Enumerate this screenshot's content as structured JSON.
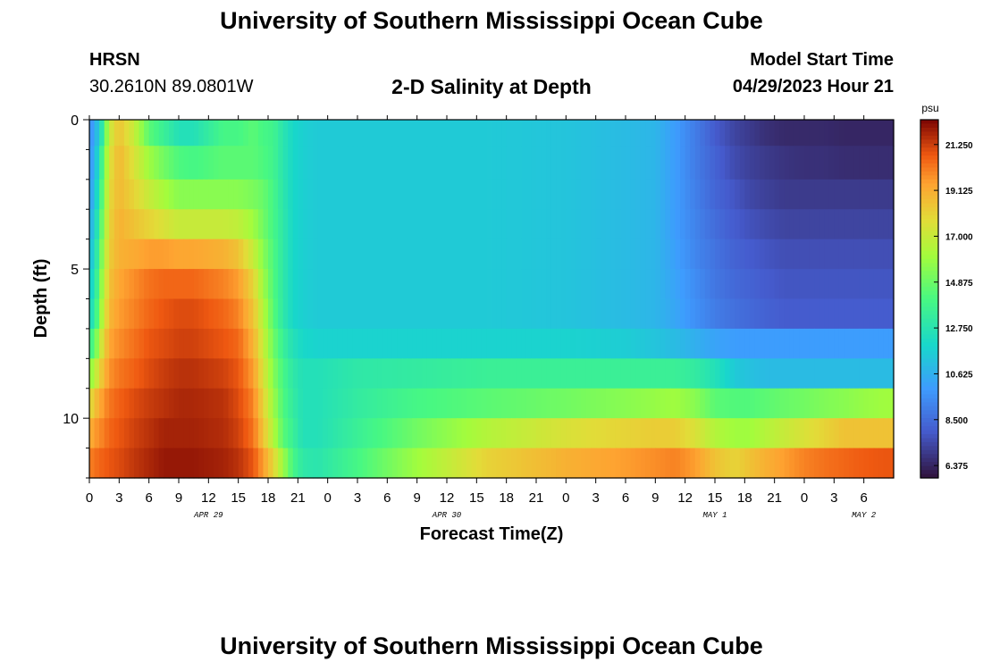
{
  "header": {
    "title": "University of Southern Mississippi Ocean Cube",
    "station_code": "HRSN",
    "station_coords": "30.2610N  89.0801W",
    "plot_title": "2-D Salinity at Depth",
    "model_start_label": "Model Start Time",
    "model_start_value": "04/29/2023 Hour 21"
  },
  "footer": {
    "title": "University of Southern Mississippi Ocean Cube"
  },
  "chart_data": {
    "type": "heatmap",
    "title": "2-D Salinity at Depth",
    "xlabel": "Forecast Time(Z)",
    "ylabel": "Depth (ft)",
    "x_range_hours": [
      0,
      81
    ],
    "x_tick_step_hours": 3,
    "x_tick_labels": [
      "0",
      "3",
      "6",
      "9",
      "12",
      "15",
      "18",
      "21",
      "0",
      "3",
      "6",
      "9",
      "12",
      "15",
      "18",
      "21",
      "0",
      "3",
      "6",
      "9",
      "12",
      "15",
      "18",
      "21",
      "0",
      "3",
      "6"
    ],
    "date_labels": [
      {
        "text": "APR 29",
        "hour": 12
      },
      {
        "text": "APR 30",
        "hour": 36
      },
      {
        "text": "MAY 1",
        "hour": 63
      },
      {
        "text": "MAY 2",
        "hour": 78
      }
    ],
    "y_range_ft": [
      0,
      12
    ],
    "y_tick_labels": [
      "0",
      "5",
      "10"
    ],
    "y_tick_values": [
      0,
      5,
      10
    ],
    "colorbar": {
      "unit": "psu",
      "min": 5.8,
      "max": 22.4,
      "tick_labels": [
        "21.250",
        "19.125",
        "17.000",
        "14.875",
        "12.750",
        "10.625",
        "8.500",
        "6.375"
      ],
      "tick_values": [
        21.25,
        19.125,
        17.0,
        14.875,
        12.75,
        10.625,
        8.5,
        6.375
      ]
    },
    "depth_levels_ft": [
      0.25,
      1.5,
      2.5,
      3.5,
      4.5,
      5.5,
      6.5,
      7.5,
      8.5,
      9.5,
      10.5,
      11.5
    ],
    "salinity_profiles_psu": {
      "time_hours": [
        0,
        0.5,
        1.3,
        2,
        3,
        4.5,
        6,
        7.5,
        9,
        10.5,
        13.5,
        15,
        16.5,
        17.5,
        18.5,
        19.5,
        20.5,
        21.5,
        23,
        27,
        33,
        40,
        48,
        54,
        57,
        59,
        61,
        63,
        65,
        66.5,
        68,
        70,
        72,
        74,
        76,
        78,
        80,
        81
      ],
      "rows": [
        [
          9.6,
          10.2,
          13.0,
          17.0,
          18.5,
          17.0,
          14.5,
          13.5,
          12.5,
          12.5,
          14.0,
          14.0,
          14.5,
          14.0,
          13.8,
          12.8,
          12.0,
          11.7,
          11.5,
          11.5,
          11.5,
          11.5,
          11.3,
          11.0,
          10.8,
          10.0,
          9.0,
          8.0,
          7.3,
          7.0,
          6.7,
          6.5,
          6.5,
          6.5,
          6.4,
          6.4,
          6.4,
          6.4
        ],
        [
          9.8,
          10.5,
          14.0,
          17.5,
          18.8,
          17.5,
          16.0,
          15.0,
          14.2,
          14.0,
          14.5,
          14.5,
          14.5,
          14.2,
          13.8,
          12.8,
          12.0,
          11.7,
          11.5,
          11.5,
          11.5,
          11.5,
          11.3,
          11.0,
          10.8,
          10.0,
          9.0,
          8.2,
          7.5,
          7.2,
          7.0,
          6.8,
          6.7,
          6.7,
          6.6,
          6.6,
          6.6,
          6.6
        ],
        [
          10.0,
          11.0,
          14.5,
          17.8,
          18.8,
          18.0,
          17.0,
          16.2,
          15.5,
          15.5,
          15.5,
          15.5,
          15.2,
          14.8,
          14.0,
          12.9,
          12.0,
          11.7,
          11.5,
          11.5,
          11.5,
          11.5,
          11.3,
          11.0,
          10.8,
          10.0,
          9.1,
          8.3,
          7.8,
          7.4,
          7.2,
          7.0,
          7.0,
          7.0,
          7.0,
          7.0,
          7.0,
          7.0
        ],
        [
          10.5,
          11.5,
          15.0,
          18.0,
          19.0,
          18.5,
          18.0,
          17.5,
          17.0,
          17.0,
          17.0,
          16.8,
          16.0,
          15.0,
          14.0,
          13.0,
          12.0,
          11.7,
          11.5,
          11.5,
          11.5,
          11.5,
          11.3,
          11.0,
          10.8,
          10.0,
          9.2,
          8.5,
          8.0,
          7.7,
          7.5,
          7.3,
          7.3,
          7.3,
          7.3,
          7.3,
          7.3,
          7.3
        ],
        [
          11.0,
          12.0,
          15.5,
          18.2,
          19.0,
          19.2,
          19.5,
          19.5,
          19.3,
          19.3,
          19.0,
          18.5,
          17.0,
          15.5,
          14.2,
          13.0,
          12.0,
          11.7,
          11.5,
          11.5,
          11.5,
          11.5,
          11.3,
          11.0,
          10.8,
          10.1,
          9.3,
          8.7,
          8.2,
          8.0,
          7.8,
          7.6,
          7.6,
          7.6,
          7.6,
          7.6,
          7.6,
          7.6
        ],
        [
          11.5,
          12.5,
          16.0,
          18.5,
          19.3,
          19.8,
          20.3,
          20.5,
          20.5,
          20.5,
          20.0,
          19.5,
          18.0,
          16.0,
          14.3,
          13.0,
          12.0,
          11.7,
          11.5,
          11.5,
          11.5,
          11.5,
          11.3,
          11.0,
          10.8,
          10.2,
          9.5,
          8.8,
          8.4,
          8.2,
          8.0,
          7.8,
          7.8,
          7.8,
          7.8,
          7.8,
          7.8,
          7.8
        ],
        [
          12.0,
          13.0,
          16.5,
          18.8,
          19.5,
          20.0,
          20.5,
          20.8,
          21.0,
          21.0,
          20.5,
          20.0,
          18.5,
          16.5,
          14.5,
          13.0,
          12.0,
          11.7,
          11.5,
          11.5,
          11.5,
          11.5,
          11.3,
          11.0,
          10.8,
          10.3,
          9.6,
          9.0,
          8.6,
          8.4,
          8.2,
          8.0,
          8.0,
          8.0,
          8.0,
          8.0,
          8.0,
          8.0
        ],
        [
          13.5,
          14.5,
          17.5,
          19.3,
          19.8,
          20.3,
          20.8,
          21.0,
          21.2,
          21.2,
          20.8,
          20.5,
          19.0,
          17.0,
          15.0,
          13.5,
          12.5,
          12.0,
          11.8,
          11.8,
          11.8,
          11.8,
          11.8,
          11.6,
          11.3,
          11.0,
          10.6,
          10.2,
          10.0,
          10.0,
          10.0,
          10.0,
          10.0,
          10.0,
          10.0,
          10.0,
          10.0,
          10.0
        ],
        [
          15.5,
          16.5,
          18.5,
          19.7,
          20.2,
          20.6,
          21.0,
          21.3,
          21.5,
          21.5,
          21.2,
          20.8,
          19.5,
          17.5,
          15.5,
          14.0,
          13.0,
          12.5,
          12.5,
          13.0,
          13.2,
          13.5,
          13.5,
          13.5,
          13.5,
          13.5,
          13.2,
          12.5,
          11.5,
          11.2,
          11.0,
          11.0,
          11.0,
          11.0,
          11.0,
          11.0,
          11.0,
          11.0
        ],
        [
          17.5,
          18.5,
          19.5,
          20.2,
          20.6,
          21.0,
          21.3,
          21.5,
          21.7,
          21.7,
          21.5,
          21.0,
          20.0,
          18.0,
          16.0,
          14.2,
          13.2,
          12.5,
          12.5,
          13.2,
          14.0,
          14.5,
          15.0,
          15.5,
          15.8,
          16.0,
          15.5,
          14.5,
          14.3,
          14.3,
          14.5,
          14.8,
          15.0,
          15.3,
          15.5,
          15.8,
          16.0,
          16.0
        ],
        [
          19.0,
          19.5,
          20.0,
          20.5,
          20.8,
          21.2,
          21.5,
          21.8,
          21.8,
          21.8,
          21.6,
          21.2,
          20.3,
          18.5,
          16.5,
          14.5,
          13.5,
          12.5,
          12.5,
          13.5,
          15.0,
          16.5,
          17.5,
          18.0,
          18.2,
          18.2,
          17.5,
          16.5,
          16.0,
          16.0,
          16.5,
          17.0,
          17.5,
          18.0,
          18.5,
          18.5,
          18.5,
          18.5
        ],
        [
          20.0,
          20.3,
          20.6,
          20.8,
          21.0,
          21.4,
          21.7,
          22.0,
          22.0,
          22.0,
          21.8,
          21.5,
          20.8,
          19.5,
          18.0,
          16.0,
          14.0,
          13.0,
          12.8,
          14.0,
          16.0,
          18.0,
          19.0,
          19.5,
          19.8,
          20.0,
          19.5,
          18.5,
          18.0,
          18.5,
          19.0,
          19.5,
          20.0,
          20.3,
          20.5,
          20.7,
          20.8,
          20.8
        ]
      ]
    }
  }
}
